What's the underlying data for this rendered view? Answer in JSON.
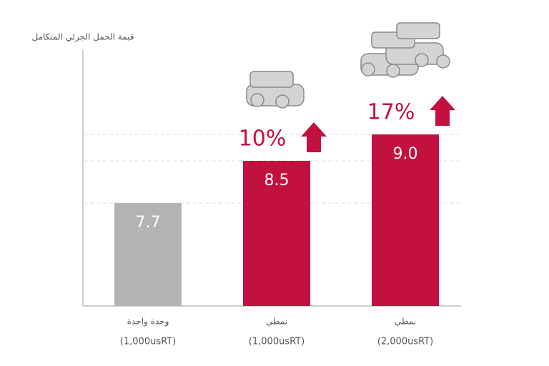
{
  "chart_data": {
    "type": "bar",
    "y_axis_label": "قيمة الحمل الجزئي المتكامل",
    "categories": [
      "وحدة واحدة",
      "نمطي",
      "نمطي"
    ],
    "category_capacities": [
      "(1,000usRT)",
      "(1,000usRT)",
      "(2,000usRT)"
    ],
    "values": [
      7.7,
      8.5,
      9.0
    ],
    "value_labels": [
      "7.7",
      "8.5",
      "9.0"
    ],
    "increase_labels": [
      null,
      "10%",
      "17%"
    ],
    "colors": [
      "#b3b3b3",
      "#c2103f",
      "#c2103f"
    ],
    "ylim": [
      5.75,
      10.6
    ],
    "grid": true
  }
}
